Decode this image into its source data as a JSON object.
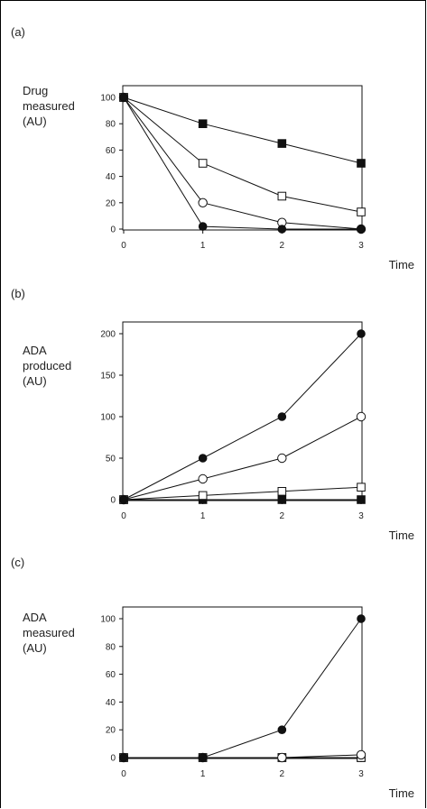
{
  "chart_data": [
    {
      "type": "line",
      "panel": "(a)",
      "ylabel": [
        "Drug",
        "measured",
        "(AU)"
      ],
      "xlabel": "Time",
      "x": [
        0,
        1,
        2,
        3
      ],
      "xticks": [
        "0",
        "1",
        "2",
        "3"
      ],
      "yticks": [
        "0",
        "20",
        "40",
        "60",
        "80",
        "100"
      ],
      "ylim": [
        0,
        100
      ],
      "xlim": [
        0,
        3
      ],
      "series": [
        {
          "marker": "filled-square",
          "values": [
            100,
            80,
            65,
            50
          ]
        },
        {
          "marker": "open-square",
          "values": [
            100,
            50,
            25,
            13
          ]
        },
        {
          "marker": "open-circle",
          "values": [
            100,
            20,
            5,
            0
          ]
        },
        {
          "marker": "filled-circle",
          "values": [
            100,
            2,
            0,
            0
          ]
        }
      ]
    },
    {
      "type": "line",
      "panel": "(b)",
      "ylabel": [
        "ADA",
        "produced",
        "(AU)"
      ],
      "xlabel": "Time",
      "x": [
        0,
        1,
        2,
        3
      ],
      "xticks": [
        "0",
        "1",
        "2",
        "3"
      ],
      "yticks": [
        "0",
        "50",
        "100",
        "150",
        "200"
      ],
      "ylim": [
        0,
        200
      ],
      "xlim": [
        0,
        3
      ],
      "series": [
        {
          "marker": "filled-square",
          "values": [
            0,
            0,
            0,
            0
          ]
        },
        {
          "marker": "open-square",
          "values": [
            0,
            5,
            10,
            15
          ]
        },
        {
          "marker": "open-circle",
          "values": [
            0,
            25,
            50,
            100
          ]
        },
        {
          "marker": "filled-circle",
          "values": [
            0,
            50,
            100,
            200
          ]
        }
      ]
    },
    {
      "type": "line",
      "panel": "(c)",
      "ylabel": [
        "ADA",
        "measured",
        "(AU)"
      ],
      "xlabel": "Time",
      "x": [
        0,
        1,
        2,
        3
      ],
      "xticks": [
        "0",
        "1",
        "2",
        "3"
      ],
      "yticks": [
        "0",
        "20",
        "40",
        "60",
        "80",
        "100"
      ],
      "ylim": [
        0,
        100
      ],
      "xlim": [
        0,
        3
      ],
      "series": [
        {
          "marker": "filled-square",
          "values": [
            0,
            0,
            0,
            0
          ]
        },
        {
          "marker": "open-square",
          "values": [
            0,
            0,
            0,
            0
          ]
        },
        {
          "marker": "open-circle",
          "values": [
            0,
            0,
            0,
            2
          ]
        },
        {
          "marker": "filled-circle",
          "values": [
            0,
            0,
            20,
            100
          ]
        }
      ]
    }
  ]
}
